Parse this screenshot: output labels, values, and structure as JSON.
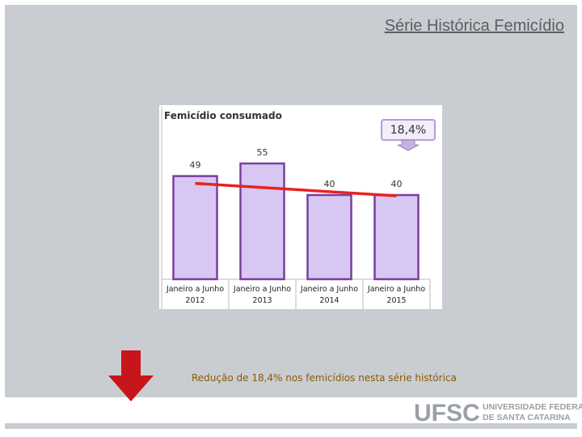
{
  "slide_title": "Série Histórica Femicídio",
  "chart_data": {
    "type": "bar",
    "title": "Femicídio consumado",
    "categories": [
      "Janeiro a Junho 2012",
      "Janeiro a Junho 2013",
      "Janeiro a Junho 2014",
      "Janeiro a Junho 2015"
    ],
    "values": [
      49,
      55,
      40,
      40
    ],
    "color": "#d8c7f3",
    "trend_color": "#e8231f",
    "annotation": "18,4%"
  },
  "caption": "Redução de 18,4% nos femicídios nesta série histórica",
  "logo": {
    "acronym": "UFSC",
    "name_line1": "UNIVERSIDADE FEDERAL",
    "name_line2": "DE SANTA CATARINA"
  }
}
